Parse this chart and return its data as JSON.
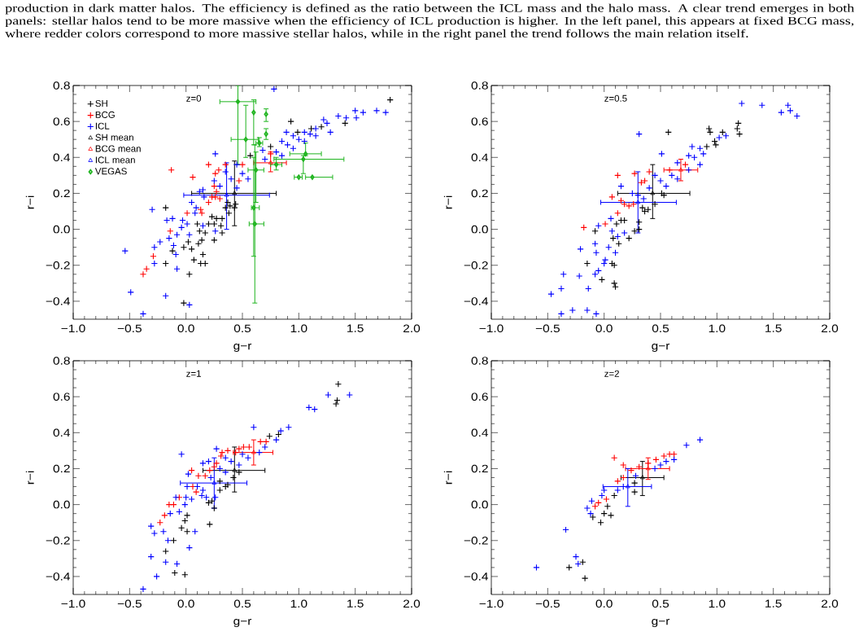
{
  "chart_data": [
    {
      "type": "scatter",
      "title": "z=0",
      "xlabel": "g−r",
      "ylabel": "r−i",
      "xlim": [
        -1,
        2
      ],
      "ylim": [
        -0.5,
        0.8
      ],
      "xticks": [
        {
          "value": -1,
          "label": "−1.0"
        },
        {
          "value": -0.5,
          "label": "−0.5"
        },
        {
          "value": 0,
          "label": "0.0"
        },
        {
          "value": 0.5,
          "label": "0.5"
        },
        {
          "value": 1,
          "label": "1.0"
        },
        {
          "value": 1.5,
          "label": "1.5"
        },
        {
          "value": 2,
          "label": "2.0"
        }
      ],
      "yticks": [
        {
          "value": -0.4,
          "label": "−0.4"
        },
        {
          "value": -0.2,
          "label": "−0.2"
        },
        {
          "value": 0,
          "label": "0.0"
        },
        0.2,
        0.4,
        0.6,
        0.8
      ],
      "legend": "top left",
      "annotations": [
        "production in dark matter halos. The efficiency is defined as the ratio between the ICL mass and the halo mass. A clear trend emerges in both",
        "panels: stellar halos tend to be more massive when the efficiency of ICL production is higher. In the left panel, this appears at fixed BCG mass,",
        "where redder colors correspond to more massive stellar halos, while in the right panel the trend follows the main relation itself."
      ],
      "series": [
        {
          "name": "SH",
          "color": "#000000",
          "marker": "cross",
          "x": [
            1.81,
            0.93,
            1.41,
            1.2,
            1.11,
            0.99,
            0.57,
            0.75,
            -0.18,
            0.37,
            0.39,
            0.44,
            0.43,
            0.35,
            0.38,
            0.27,
            0.32,
            0.23,
            0.2,
            0.25,
            0.31,
            0.12,
            0.17,
            0.1,
            0.25,
            0.32,
            0.14,
            0.11,
            0.02,
            -0.02,
            0.05,
            -0.12,
            0.15,
            0.07,
            0.13,
            0.17,
            -0.18,
            0.03,
            -0.02
          ],
          "values": [
            0.72,
            0.6,
            0.59,
            0.57,
            0.56,
            0.54,
            0.41,
            0.46,
            0.12,
            0.15,
            0.13,
            0.14,
            0.12,
            0.12,
            0.09,
            0.06,
            0.06,
            0.07,
            0.03,
            0.03,
            0.02,
            -0.01,
            -0.02,
            0.03,
            -0.06,
            -0.02,
            -0.06,
            -0.08,
            -0.07,
            -0.1,
            -0.11,
            -0.12,
            -0.14,
            -0.17,
            -0.19,
            -0.19,
            -0.19,
            -0.25,
            -0.41
          ]
        },
        {
          "name": "BCG",
          "color": "#ff0000",
          "marker": "cross",
          "x": [
            -0.13,
            0.06,
            0.2,
            0.35,
            0.26,
            0.29,
            0.5,
            0.25,
            0.27,
            0.26,
            0.23,
            0.2,
            0.13,
            0.14,
            0.01,
            -0.14,
            -0.29,
            -0.35,
            -0.38,
            0.3,
            0.75,
            0.47
          ],
          "values": [
            0.33,
            0.29,
            0.36,
            0.36,
            0.31,
            0.33,
            0.36,
            0.24,
            0.21,
            0.18,
            0.18,
            0.15,
            0.11,
            0.09,
            0.09,
            -0.01,
            -0.15,
            -0.22,
            -0.25,
            0.17,
            0.42,
            0.27
          ]
        },
        {
          "name": "ICL",
          "color": "#0000ff",
          "marker": "cross",
          "x": [
            0.78,
            0.26,
            -0.54,
            -0.49,
            -0.38,
            -0.18,
            0.03,
            -0.3,
            -0.12,
            -0.17,
            -0.23,
            -0.28,
            -0.28,
            -0.11,
            -0.09,
            -0.08,
            -0.15,
            -0.08,
            -0.03,
            -0.04,
            0.01,
            0.03,
            0.05,
            0.09,
            0.08,
            0.12,
            0.16,
            0.26,
            0.15,
            1.35,
            1.42,
            1.51,
            1.57,
            1.69,
            1.77,
            1.5,
            1.22,
            1.25,
            1.28,
            0.89,
            0.3,
            0.4,
            0.5,
            0.7,
            0.8,
            0.9,
            1.0,
            1.1,
            0.15,
            0.25,
            0.35,
            0.45,
            0.68,
            0.85,
            0.95,
            1.05,
            1.15,
            0.45,
            0.55,
            0.85,
            0.95,
            1.05,
            1.15
          ],
          "values": [
            0.78,
            0.42,
            -0.12,
            -0.35,
            -0.47,
            -0.37,
            -0.42,
            0.11,
            0.06,
            0.05,
            -0.07,
            -0.1,
            -0.19,
            -0.09,
            -0.14,
            -0.22,
            -0.05,
            -0.03,
            0.05,
            0.01,
            0.03,
            -0.03,
            0.15,
            0.12,
            0.09,
            0.21,
            0.18,
            -0.01,
            0.02,
            0.63,
            0.62,
            0.62,
            0.65,
            0.66,
            0.65,
            0.66,
            0.61,
            0.59,
            0.54,
            0.54,
            0.24,
            0.28,
            0.31,
            0.39,
            0.43,
            0.47,
            0.5,
            0.53,
            0.22,
            0.27,
            0.32,
            0.36,
            0.44,
            0.49,
            0.52,
            0.54,
            0.56,
            0.23,
            0.28,
            0.41,
            0.45,
            0.49,
            0.52
          ]
        },
        {
          "name": "SH mean",
          "color": "#000000",
          "marker": "triangle",
          "x": [
            0.43
          ],
          "values": [
            0.2
          ],
          "xerrors": [
            [
              0.05,
              0.8
            ]
          ],
          "errors": [
            [
              0.02,
              0.38
            ]
          ]
        },
        {
          "name": "BCG mean",
          "color": "#ff0000",
          "marker": "triangle",
          "x": [
            0.75
          ],
          "values": [
            0.37
          ],
          "xerrors": [
            [
              0.6,
              0.89
            ]
          ],
          "errors": [
            [
              0.32,
              0.43
            ]
          ]
        },
        {
          "name": "ICL mean",
          "color": "#0000ff",
          "marker": "triangle",
          "x": [
            0.36
          ],
          "values": [
            0.19
          ],
          "xerrors": [
            [
              -0.02,
              0.74
            ]
          ],
          "errors": [
            [
              0.0,
              0.37
            ]
          ]
        },
        {
          "name": "VEGAS",
          "color": "#1eb41e",
          "marker": "diamond",
          "x": [
            0.46,
            0.6,
            0.71,
            0.53,
            0.71,
            0.65,
            0.62,
            0.8,
            1.06,
            1.04,
            1.0,
            1.12,
            0.6,
            0.61
          ],
          "values": [
            0.71,
            0.65,
            0.64,
            0.5,
            0.53,
            0.48,
            0.33,
            0.36,
            0.42,
            0.39,
            0.29,
            0.29,
            0.12,
            0.03
          ],
          "xerrors": [
            [
              0.3,
              0.62
            ],
            null,
            null,
            [
              0.4,
              0.64
            ],
            null,
            [
              0.62,
              0.68
            ],
            [
              0.55,
              0.69
            ],
            [
              0.75,
              0.85
            ],
            [
              0.92,
              1.2
            ],
            [
              0.78,
              1.4
            ],
            [
              0.96,
              1.03
            ],
            [
              1.06,
              1.3
            ],
            [
              0.58,
              0.65
            ],
            [
              0.56,
              0.69
            ]
          ],
          "errors": [
            [
              0.36,
              0.8
            ],
            [
              0.47,
              0.72
            ],
            [
              0.6,
              0.67
            ],
            [
              0.4,
              0.69
            ],
            [
              0.5,
              0.56
            ],
            [
              0.46,
              0.51
            ],
            [
              0.15,
              0.43
            ],
            [
              0.33,
              0.4
            ],
            [
              0.41,
              0.48
            ],
            [
              0.31,
              0.41
            ],
            null,
            null,
            [
              -0.15,
              0.4
            ],
            [
              -0.41,
              0.47
            ]
          ]
        }
      ]
    },
    {
      "type": "scatter",
      "title": "z=0.5",
      "xlabel": "g−r",
      "ylabel": "r−i",
      "xlim": [
        -1,
        2
      ],
      "ylim": [
        -0.5,
        0.8
      ],
      "xticks": [
        {
          "value": -1,
          "label": "−1.0"
        },
        {
          "value": -0.5,
          "label": "−0.5"
        },
        {
          "value": 0,
          "label": "0.0"
        },
        {
          "value": 0.5,
          "label": "0.5"
        },
        {
          "value": 1,
          "label": "1.0"
        },
        {
          "value": 1.5,
          "label": "1.5"
        },
        {
          "value": 2,
          "label": "2.0"
        }
      ],
      "yticks": [
        {
          "value": -0.4,
          "label": "−0.4"
        },
        {
          "value": -0.2,
          "label": "−0.2"
        },
        {
          "value": 0,
          "label": "0.0"
        },
        0.2,
        0.4,
        0.6,
        0.8
      ],
      "series": [
        {
          "color": "#000000",
          "marker": "cross",
          "x": [
            0.93,
            0.94,
            0.57,
            1.19,
            1.18,
            1.2,
            1.05,
            0.98,
            0.99,
            0.91,
            -0.15,
            -0.02,
            0.09,
            0.1,
            0.07,
            0.09,
            -0.08,
            0.08,
            0.13,
            0.22,
            0.27,
            0.31,
            0.31,
            0.15,
            0.18,
            0.11,
            0.36,
            0.39,
            0.34,
            0.45,
            0.51,
            0.53
          ],
          "values": [
            0.56,
            0.54,
            0.54,
            0.59,
            0.56,
            0.53,
            0.54,
            0.49,
            0.47,
            0.46,
            -0.19,
            -0.28,
            -0.3,
            -0.32,
            -0.19,
            -0.2,
            -0.01,
            -0.05,
            -0.08,
            -0.05,
            -0.01,
            0.0,
            0.04,
            0.05,
            0.05,
            0.03,
            0.1,
            0.11,
            0.12,
            0.14,
            0.2,
            0.19
          ]
        },
        {
          "color": "#ff0000",
          "marker": "cross",
          "x": [
            -0.18,
            0.07,
            0.12,
            0.27,
            0.4,
            0.33,
            0.36,
            0.15,
            0.18,
            0.22,
            0.26,
            0.12,
            0.01,
            0.58,
            0.72
          ],
          "values": [
            0.01,
            0.18,
            0.3,
            0.31,
            0.32,
            0.26,
            0.27,
            0.16,
            0.14,
            0.13,
            0.14,
            0.09,
            0.03,
            0.33,
            0.36
          ]
        },
        {
          "color": "#0000ff",
          "marker": "cross",
          "x": [
            1.22,
            1.4,
            1.63,
            1.57,
            1.65,
            1.71,
            0.31,
            1.08,
            1.02,
            0.51,
            0.85,
            0.78,
            -0.47,
            -0.38,
            -0.38,
            -0.36,
            -0.28,
            -0.22,
            -0.15,
            -0.07,
            -0.14,
            -0.08,
            -0.05,
            -0.21,
            -0.07,
            -0.08,
            0.0,
            0.01,
            0.04,
            0.1,
            0.07,
            0.12,
            -0.05,
            0.06,
            0.15,
            0.18,
            0.3,
            0.4,
            0.5,
            0.6,
            0.8,
            0.88,
            0.25,
            0.45,
            0.65,
            0.75,
            0.85,
            0.35,
            0.55,
            0.65,
            0.75
          ],
          "values": [
            0.7,
            0.69,
            0.69,
            0.65,
            0.66,
            0.63,
            0.53,
            0.52,
            0.51,
            0.42,
            0.36,
            0.46,
            -0.36,
            -0.47,
            -0.33,
            -0.25,
            -0.45,
            -0.26,
            -0.45,
            -0.47,
            -0.33,
            -0.25,
            -0.23,
            -0.11,
            -0.13,
            -0.08,
            -0.19,
            -0.17,
            -0.1,
            -0.13,
            -0.01,
            -0.04,
            0.02,
            0.06,
            0.24,
            -0.02,
            0.19,
            0.23,
            0.27,
            0.3,
            0.4,
            0.42,
            0.2,
            0.3,
            0.37,
            0.41,
            0.45,
            0.17,
            0.24,
            0.28,
            0.33
          ]
        },
        {
          "color": "#000000",
          "marker": "triangle",
          "x": [
            0.43
          ],
          "values": [
            0.2
          ],
          "xerrors": [
            [
              0.12,
              0.76
            ]
          ],
          "errors": [
            [
              0.06,
              0.36
            ]
          ]
        },
        {
          "color": "#ff0000",
          "marker": "triangle",
          "x": [
            0.68
          ],
          "values": [
            0.33
          ],
          "xerrors": [
            [
              0.53,
              0.83
            ]
          ],
          "errors": [
            [
              0.27,
              0.39
            ]
          ]
        },
        {
          "color": "#0000ff",
          "marker": "triangle",
          "x": [
            0.3
          ],
          "values": [
            0.15
          ],
          "xerrors": [
            [
              -0.03,
              0.64
            ]
          ],
          "errors": [
            [
              -0.02,
              0.32
            ]
          ]
        }
      ]
    },
    {
      "type": "scatter",
      "title": "z=1",
      "xlabel": "g−r",
      "ylabel": "r−i",
      "xlim": [
        -1,
        2
      ],
      "ylim": [
        -0.5,
        0.8
      ],
      "xticks": [
        {
          "value": -1,
          "label": "−1.0"
        },
        {
          "value": -0.5,
          "label": "−0.5"
        },
        {
          "value": 0,
          "label": "0.0"
        },
        {
          "value": 0.5,
          "label": "0.5"
        },
        {
          "value": 1,
          "label": "1.0"
        },
        {
          "value": 1.5,
          "label": "1.5"
        },
        {
          "value": 2,
          "label": "2.0"
        }
      ],
      "yticks": [
        {
          "value": -0.4,
          "label": "−0.4"
        },
        {
          "value": -0.2,
          "label": "−0.2"
        },
        {
          "value": 0,
          "label": "0.0"
        },
        0.2,
        0.4,
        0.6,
        0.8
      ],
      "series": [
        {
          "color": "#000000",
          "marker": "cross",
          "x": [
            1.35,
            1.34,
            1.33,
            0.74,
            0.82,
            -0.1,
            -0.01,
            -0.18,
            -0.11,
            -0.04,
            0.01,
            -0.01,
            0.01,
            0.21,
            0.2,
            0.23,
            0.25,
            0.3,
            0.35,
            0.37,
            0.42,
            0.47,
            0.3
          ],
          "values": [
            0.67,
            0.58,
            0.56,
            0.38,
            0.39,
            -0.38,
            -0.39,
            -0.26,
            -0.2,
            -0.13,
            -0.15,
            -0.09,
            -0.06,
            -0.11,
            0.01,
            0.02,
            -0.02,
            0.08,
            0.1,
            0.11,
            0.15,
            0.18,
            0.13
          ]
        },
        {
          "color": "#ff0000",
          "marker": "cross",
          "x": [
            0.05,
            0.11,
            -0.15,
            -0.11,
            -0.19,
            -0.23,
            -0.06,
            0.17,
            0.21,
            0.25,
            0.31,
            0.32,
            0.37,
            0.44,
            0.47,
            0.51,
            0.56,
            0.66,
            0.71,
            0.27,
            0.06,
            0.09
          ],
          "values": [
            0.19,
            0.16,
            0.0,
            0.0,
            -0.06,
            -0.1,
            0.04,
            0.16,
            0.19,
            0.21,
            0.27,
            0.29,
            0.3,
            0.29,
            0.31,
            0.32,
            0.32,
            0.35,
            0.35,
            0.23,
            0.1,
            0.07
          ]
        },
        {
          "color": "#0000ff",
          "marker": "cross",
          "x": [
            1.26,
            1.45,
            1.09,
            1.14,
            0.91,
            0.84,
            0.6,
            -0.04,
            0.27,
            0.2,
            0.15,
            0.02,
            -0.31,
            -0.28,
            -0.2,
            -0.16,
            -0.31,
            -0.18,
            -0.08,
            -0.26,
            -0.38,
            0.03,
            0.08,
            -0.14,
            -0.06,
            -0.09,
            0.01,
            0.0,
            -0.01,
            0.14,
            0.18,
            0.26,
            0.1,
            0.22,
            0.3,
            0.4,
            0.5,
            0.7,
            0.8,
            0.35,
            0.05,
            0.15,
            0.35,
            0.47,
            0.55,
            0.65
          ],
          "values": [
            0.61,
            0.61,
            0.54,
            0.53,
            0.43,
            0.41,
            0.43,
            0.28,
            0.31,
            0.24,
            0.23,
            0.17,
            -0.12,
            -0.16,
            -0.15,
            -0.2,
            -0.29,
            -0.32,
            -0.33,
            -0.4,
            -0.47,
            -0.24,
            -0.15,
            -0.05,
            -0.04,
            0.04,
            0.1,
            0.04,
            0.0,
            0.05,
            0.04,
            0.04,
            0.1,
            0.15,
            0.2,
            0.24,
            0.28,
            0.32,
            0.36,
            0.26,
            0.03,
            0.08,
            0.18,
            0.22,
            0.26,
            0.29
          ]
        },
        {
          "color": "#000000",
          "marker": "triangle",
          "x": [
            0.43
          ],
          "values": [
            0.19
          ],
          "xerrors": [
            [
              0.15,
              0.7
            ]
          ],
          "errors": [
            [
              0.07,
              0.32
            ]
          ]
        },
        {
          "color": "#ff0000",
          "marker": "triangle",
          "x": [
            0.6
          ],
          "values": [
            0.29
          ],
          "xerrors": [
            [
              0.42,
              0.77
            ]
          ],
          "errors": [
            [
              0.22,
              0.36
            ]
          ]
        },
        {
          "color": "#0000ff",
          "marker": "triangle",
          "x": [
            0.25
          ],
          "values": [
            0.12
          ],
          "xerrors": [
            [
              -0.05,
              0.54
            ]
          ],
          "errors": [
            [
              -0.02,
              0.26
            ]
          ]
        }
      ]
    },
    {
      "type": "scatter",
      "title": "z=2",
      "xlabel": "g−r",
      "ylabel": "r−i",
      "xlim": [
        -1,
        2
      ],
      "ylim": [
        -0.5,
        0.8
      ],
      "xticks": [
        {
          "value": -1,
          "label": "−1.0"
        },
        {
          "value": -0.5,
          "label": "−0.5"
        },
        {
          "value": 0,
          "label": "0.0"
        },
        {
          "value": 0.5,
          "label": "0.5"
        },
        {
          "value": 1,
          "label": "1.0"
        },
        {
          "value": 1.5,
          "label": "1.5"
        },
        {
          "value": 2,
          "label": "2.0"
        }
      ],
      "yticks": [
        {
          "value": -0.4,
          "label": "−0.4"
        },
        {
          "value": -0.2,
          "label": "−0.2"
        },
        {
          "value": 0,
          "label": "0.0"
        },
        0.2,
        0.4,
        0.6,
        0.8
      ],
      "series": [
        {
          "color": "#000000",
          "marker": "cross",
          "x": [
            -0.31,
            -0.19,
            -0.17,
            -0.1,
            -0.03,
            0.0,
            0.06,
            0.03,
            0.09,
            0.27,
            0.27
          ],
          "values": [
            -0.35,
            -0.32,
            -0.41,
            -0.07,
            -0.1,
            -0.05,
            -0.06,
            -0.01,
            0.05,
            0.07,
            0.12
          ]
        },
        {
          "color": "#ff0000",
          "marker": "cross",
          "x": [
            0.09,
            0.17,
            -0.08,
            -0.05,
            0.02,
            0.12,
            0.17,
            0.24,
            0.31,
            0.39,
            0.46,
            0.53,
            0.58,
            0.62
          ],
          "values": [
            0.26,
            0.22,
            -0.01,
            0.01,
            0.03,
            0.13,
            0.15,
            0.19,
            0.21,
            0.23,
            0.25,
            0.27,
            0.28,
            0.28
          ]
        },
        {
          "color": "#0000ff",
          "marker": "cross",
          "x": [
            0.85,
            0.73,
            -0.6,
            -0.34,
            -0.25,
            -0.23,
            -0.15,
            -0.12,
            -0.11,
            -0.02,
            0.0,
            0.12,
            0.17,
            0.28,
            0.45,
            0.5,
            0.55,
            0.62
          ],
          "values": [
            0.36,
            0.33,
            -0.35,
            -0.14,
            -0.29,
            -0.33,
            -0.02,
            -0.05,
            0.02,
            0.05,
            0.08,
            0.08,
            0.1,
            0.16,
            0.2,
            0.22,
            0.24,
            0.25
          ]
        },
        {
          "color": "#000000",
          "marker": "triangle",
          "x": [
            0.34
          ],
          "values": [
            0.15
          ],
          "xerrors": [
            [
              0.15,
              0.53
            ]
          ],
          "errors": [
            [
              0.05,
              0.24
            ]
          ]
        },
        {
          "color": "#ff0000",
          "marker": "triangle",
          "x": [
            0.39
          ],
          "values": [
            0.2
          ],
          "xerrors": [
            [
              0.19,
              0.58
            ]
          ],
          "errors": [
            [
              0.14,
              0.26
            ]
          ]
        },
        {
          "color": "#0000ff",
          "marker": "triangle",
          "x": [
            0.21
          ],
          "values": [
            0.1
          ],
          "xerrors": [
            [
              -0.01,
              0.42
            ]
          ],
          "errors": [
            [
              -0.01,
              0.2
            ]
          ]
        }
      ]
    }
  ]
}
